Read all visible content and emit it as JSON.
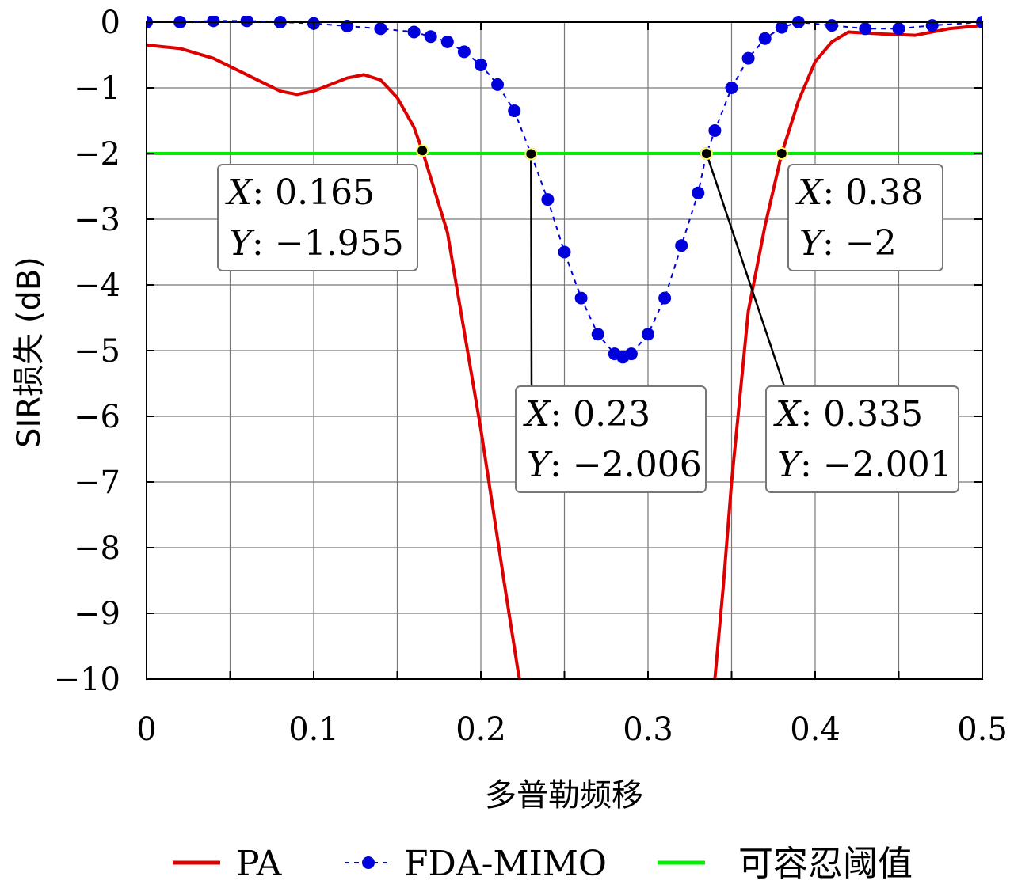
{
  "chart_data": {
    "type": "line",
    "xlabel": "多普勒频移",
    "ylabel": "SIR损失 (dB)",
    "xlim": [
      0,
      0.5
    ],
    "ylim": [
      -10,
      0
    ],
    "x_ticks": [
      "0",
      "0.1",
      "0.2",
      "0.3",
      "0.4",
      "0.5"
    ],
    "y_ticks": [
      "0",
      "−1",
      "−2",
      "−3",
      "−4",
      "−5",
      "−6",
      "−7",
      "−8",
      "−9",
      "−10"
    ],
    "grid": true,
    "legend_position": "bottom",
    "series": [
      {
        "name": "PA",
        "color": "#dd0000",
        "marker": "none",
        "points": [
          [
            0.0,
            -0.35
          ],
          [
            0.02,
            -0.4
          ],
          [
            0.04,
            -0.55
          ],
          [
            0.06,
            -0.8
          ],
          [
            0.08,
            -1.05
          ],
          [
            0.09,
            -1.1
          ],
          [
            0.1,
            -1.05
          ],
          [
            0.12,
            -0.85
          ],
          [
            0.13,
            -0.8
          ],
          [
            0.14,
            -0.88
          ],
          [
            0.15,
            -1.15
          ],
          [
            0.16,
            -1.6
          ],
          [
            0.165,
            -1.955
          ],
          [
            0.18,
            -3.2
          ],
          [
            0.2,
            -6.2
          ],
          [
            0.215,
            -8.7
          ],
          [
            0.223,
            -10.0
          ]
        ]
      },
      {
        "name": "PA",
        "color": "#dd0000",
        "marker": "none",
        "points": [
          [
            0.34,
            -10.0
          ],
          [
            0.345,
            -8.6
          ],
          [
            0.35,
            -7.0
          ],
          [
            0.36,
            -4.4
          ],
          [
            0.37,
            -3.1
          ],
          [
            0.38,
            -2.0
          ],
          [
            0.39,
            -1.2
          ],
          [
            0.4,
            -0.6
          ],
          [
            0.41,
            -0.3
          ],
          [
            0.42,
            -0.15
          ],
          [
            0.44,
            -0.18
          ],
          [
            0.46,
            -0.2
          ],
          [
            0.48,
            -0.1
          ],
          [
            0.5,
            -0.05
          ]
        ]
      },
      {
        "name": "FDA-MIMO",
        "color": "#0000dd",
        "marker": "circle",
        "points": [
          [
            0.0,
            0.0
          ],
          [
            0.02,
            0.0
          ],
          [
            0.04,
            0.02
          ],
          [
            0.06,
            0.02
          ],
          [
            0.08,
            0.0
          ],
          [
            0.1,
            -0.02
          ],
          [
            0.12,
            -0.06
          ],
          [
            0.14,
            -0.1
          ],
          [
            0.16,
            -0.15
          ],
          [
            0.17,
            -0.22
          ],
          [
            0.18,
            -0.3
          ],
          [
            0.19,
            -0.45
          ],
          [
            0.2,
            -0.65
          ],
          [
            0.21,
            -0.95
          ],
          [
            0.22,
            -1.35
          ],
          [
            0.23,
            -2.006
          ],
          [
            0.24,
            -2.7
          ],
          [
            0.25,
            -3.5
          ],
          [
            0.26,
            -4.2
          ],
          [
            0.27,
            -4.75
          ],
          [
            0.28,
            -5.05
          ],
          [
            0.285,
            -5.1
          ],
          [
            0.29,
            -5.05
          ],
          [
            0.3,
            -4.75
          ],
          [
            0.31,
            -4.2
          ],
          [
            0.32,
            -3.4
          ],
          [
            0.33,
            -2.6
          ],
          [
            0.335,
            -2.001
          ],
          [
            0.34,
            -1.65
          ],
          [
            0.35,
            -1.0
          ],
          [
            0.36,
            -0.55
          ],
          [
            0.37,
            -0.25
          ],
          [
            0.38,
            -0.08
          ],
          [
            0.39,
            0.0
          ],
          [
            0.41,
            -0.05
          ],
          [
            0.43,
            -0.1
          ],
          [
            0.45,
            -0.1
          ],
          [
            0.47,
            -0.05
          ],
          [
            0.5,
            0.0
          ]
        ]
      },
      {
        "name": "可容忍阈值",
        "color": "#00ee00",
        "marker": "none",
        "points": [
          [
            0.0,
            -2.0
          ],
          [
            0.5,
            -2.0
          ]
        ]
      }
    ],
    "annotations": [
      {
        "point": [
          0.165,
          -1.955
        ],
        "x_label": "X",
        "x_value": "0.165",
        "y_label": "Y",
        "y_value": "−1.955"
      },
      {
        "point": [
          0.23,
          -2.006
        ],
        "x_label": "X",
        "x_value": "0.23",
        "y_label": "Y",
        "y_value": "−2.006"
      },
      {
        "point": [
          0.335,
          -2.001
        ],
        "x_label": "X",
        "x_value": "0.335",
        "y_label": "Y",
        "y_value": "−2.001"
      },
      {
        "point": [
          0.38,
          -2.0
        ],
        "x_label": "X",
        "x_value": "0.38",
        "y_label": "Y",
        "y_value": "−2"
      }
    ],
    "legend": [
      {
        "label": "PA",
        "color": "#dd0000",
        "marker": "none"
      },
      {
        "label": "FDA-MIMO",
        "color": "#0000dd",
        "marker": "circle"
      },
      {
        "label": "可容忍阈值",
        "color": "#00ee00",
        "marker": "none"
      }
    ]
  }
}
